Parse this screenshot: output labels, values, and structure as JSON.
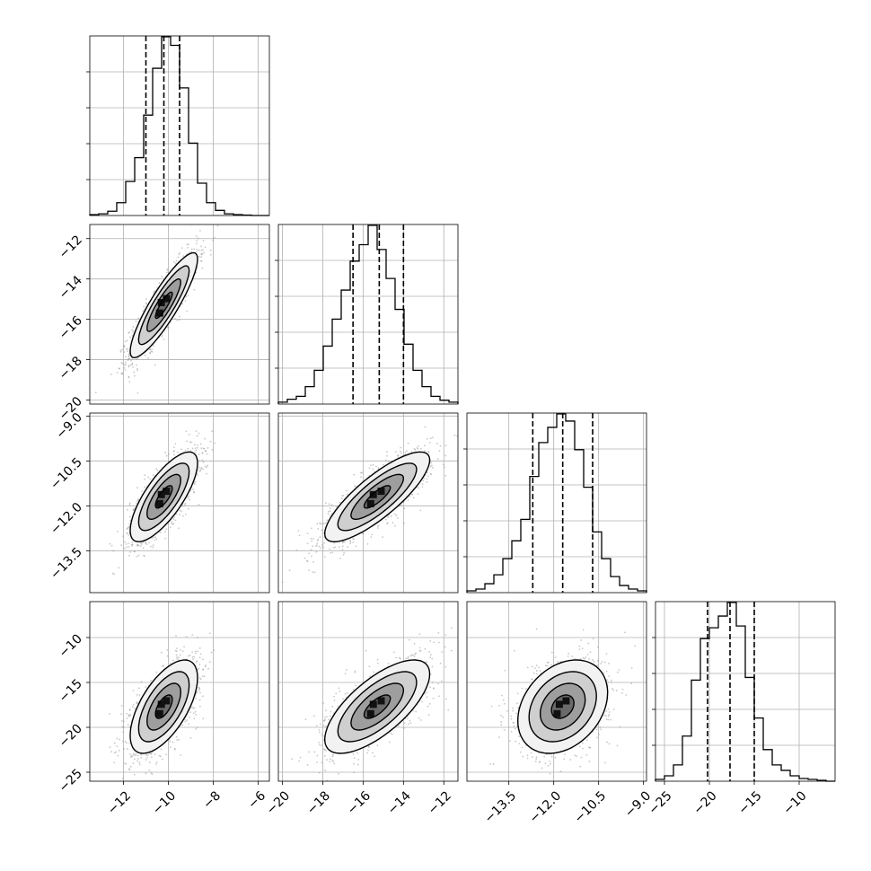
{
  "chart_data": {
    "type": "corner",
    "dimensions": 4,
    "grid": true,
    "axes": [
      {
        "range": [
          -13.5,
          -5.5
        ],
        "ticks": [
          -12,
          -10,
          -8,
          -6
        ],
        "tick_labels": [
          "−12",
          "−10",
          "−8",
          "−6"
        ]
      },
      {
        "range": [
          -20.2,
          -11.3
        ],
        "ticks": [
          -20,
          -18,
          -16,
          -14,
          -12
        ],
        "tick_labels": [
          "−20",
          "−18",
          "−16",
          "−14",
          "−12"
        ]
      },
      {
        "range": [
          -14.9,
          -8.9
        ],
        "ticks": [
          -13.5,
          -12.0,
          -10.5,
          -9.0
        ],
        "tick_labels": [
          "−13.5",
          "−12.0",
          "−10.5",
          "−9.0"
        ]
      },
      {
        "range": [
          -26,
          -6
        ],
        "ticks": [
          -25,
          -20,
          -15,
          -10
        ],
        "tick_labels": [
          "−25",
          "−20",
          "−15",
          "−10"
        ]
      }
    ],
    "marginals": [
      {
        "quantiles": [
          -11.0,
          -10.2,
          -9.5
        ],
        "bin_edges": [
          -13.5,
          -13.1,
          -12.7,
          -12.3,
          -11.9,
          -11.5,
          -11.1,
          -10.7,
          -10.3,
          -9.9,
          -9.5,
          -9.1,
          -8.7,
          -8.3,
          -7.9,
          -7.5,
          -7.1,
          -6.7,
          -6.3,
          -5.9,
          -5.5
        ],
        "counts": [
          1,
          2,
          5,
          15,
          40,
          68,
          118,
          173,
          210,
          200,
          150,
          85,
          38,
          15,
          6,
          2,
          1,
          0.5,
          0,
          0
        ]
      },
      {
        "quantiles": [
          -16.5,
          -15.2,
          -14.0
        ],
        "bin_edges": [
          -20.2,
          -19.755,
          -19.31,
          -18.865,
          -18.42,
          -17.975,
          -17.53,
          -17.085,
          -16.64,
          -16.195,
          -15.75,
          -15.305,
          -14.86,
          -14.415,
          -13.97,
          -13.525,
          -13.08,
          -12.635,
          -12.19,
          -11.745,
          -11.3
        ],
        "counts": [
          2,
          5,
          8,
          18,
          35,
          60,
          88,
          118,
          148,
          165,
          185,
          160,
          130,
          98,
          62,
          35,
          18,
          8,
          4,
          2
        ]
      },
      {
        "quantiles": [
          -12.7,
          -11.7,
          -10.7
        ],
        "bin_edges": [
          -14.9,
          -14.6,
          -14.3,
          -14.0,
          -13.7,
          -13.4,
          -13.1,
          -12.8,
          -12.5,
          -12.2,
          -11.9,
          -11.6,
          -11.3,
          -11.0,
          -10.7,
          -10.4,
          -10.1,
          -9.8,
          -9.5,
          -9.2,
          -8.9
        ],
        "counts": [
          2,
          4,
          10,
          20,
          38,
          58,
          82,
          130,
          168,
          185,
          200,
          192,
          160,
          118,
          68,
          38,
          18,
          8,
          4,
          2
        ]
      },
      {
        "quantiles": [
          -20.2,
          -17.7,
          -15.0
        ],
        "bin_edges": [
          -26,
          -25,
          -24,
          -23,
          -22,
          -21,
          -20,
          -19,
          -18,
          -17,
          -16,
          -15,
          -14,
          -13,
          -12,
          -11,
          -10,
          -9,
          -8,
          -7,
          -6
        ],
        "counts": [
          2,
          6,
          18,
          50,
          112,
          158,
          170,
          183,
          198,
          172,
          115,
          70,
          35,
          18,
          12,
          6,
          3,
          2,
          1,
          0
        ]
      }
    ],
    "pairs": [
      {
        "x": 0,
        "y": 1,
        "mean": [
          -10.2,
          -15.3
        ],
        "sd": [
          0.75,
          1.3
        ],
        "rho": 0.88
      },
      {
        "x": 0,
        "y": 2,
        "mean": [
          -10.2,
          -11.7
        ],
        "sd": [
          0.75,
          0.75
        ],
        "rho": 0.75
      },
      {
        "x": 1,
        "y": 2,
        "mean": [
          -15.3,
          -11.7
        ],
        "sd": [
          1.3,
          0.75
        ],
        "rho": 0.82
      },
      {
        "x": 0,
        "y": 3,
        "mean": [
          -10.2,
          -17.7
        ],
        "sd": [
          0.75,
          2.6
        ],
        "rho": 0.62
      },
      {
        "x": 1,
        "y": 3,
        "mean": [
          -15.3,
          -17.7
        ],
        "sd": [
          1.3,
          2.6
        ],
        "rho": 0.7
      },
      {
        "x": 2,
        "y": 3,
        "mean": [
          -11.7,
          -17.7
        ],
        "sd": [
          0.75,
          2.6
        ],
        "rho": 0.3
      }
    ],
    "contour_levels_sigma": [
      0.5,
      1.0,
      1.5,
      2.0
    ],
    "title": "",
    "xlabel": "",
    "ylabel": ""
  }
}
